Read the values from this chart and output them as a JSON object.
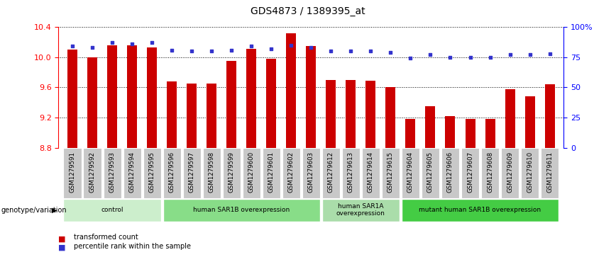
{
  "title": "GDS4873 / 1389395_at",
  "samples": [
    "GSM1279591",
    "GSM1279592",
    "GSM1279593",
    "GSM1279594",
    "GSM1279595",
    "GSM1279596",
    "GSM1279597",
    "GSM1279598",
    "GSM1279599",
    "GSM1279600",
    "GSM1279601",
    "GSM1279602",
    "GSM1279603",
    "GSM1279612",
    "GSM1279613",
    "GSM1279614",
    "GSM1279615",
    "GSM1279604",
    "GSM1279605",
    "GSM1279606",
    "GSM1279607",
    "GSM1279608",
    "GSM1279609",
    "GSM1279610",
    "GSM1279611"
  ],
  "bar_values": [
    10.1,
    10.0,
    10.16,
    10.16,
    10.13,
    9.68,
    9.65,
    9.65,
    9.95,
    10.11,
    9.98,
    10.32,
    10.15,
    9.7,
    9.7,
    9.69,
    9.6,
    9.18,
    9.35,
    9.22,
    9.18,
    9.18,
    9.58,
    9.48,
    9.64
  ],
  "percentile_values": [
    84,
    83,
    87,
    86,
    87,
    81,
    80,
    80,
    81,
    84,
    82,
    85,
    83,
    80,
    80,
    80,
    79,
    74,
    77,
    75,
    75,
    75,
    77,
    77,
    78
  ],
  "ylim": [
    8.8,
    10.4
  ],
  "yticks": [
    8.8,
    9.2,
    9.6,
    10.0,
    10.4
  ],
  "right_yticks": [
    0,
    25,
    50,
    75,
    100
  ],
  "bar_color": "#cc0000",
  "dot_color": "#3333cc",
  "bar_bottom": 8.8,
  "groups": [
    {
      "label": "control",
      "start": 0,
      "end": 5,
      "color": "#cceecc"
    },
    {
      "label": "human SAR1B overexpression",
      "start": 5,
      "end": 13,
      "color": "#88dd88"
    },
    {
      "label": "human SAR1A\noverexpression",
      "start": 13,
      "end": 17,
      "color": "#aaddaa"
    },
    {
      "label": "mutant human SAR1B overexpression",
      "start": 17,
      "end": 25,
      "color": "#44cc44"
    }
  ],
  "bar_width": 0.5,
  "tick_area_color": "#c8c8c8",
  "genotype_label": "genotype/variation",
  "legend_items": [
    {
      "label": "transformed count",
      "color": "#cc0000"
    },
    {
      "label": "percentile rank within the sample",
      "color": "#3333cc"
    }
  ]
}
